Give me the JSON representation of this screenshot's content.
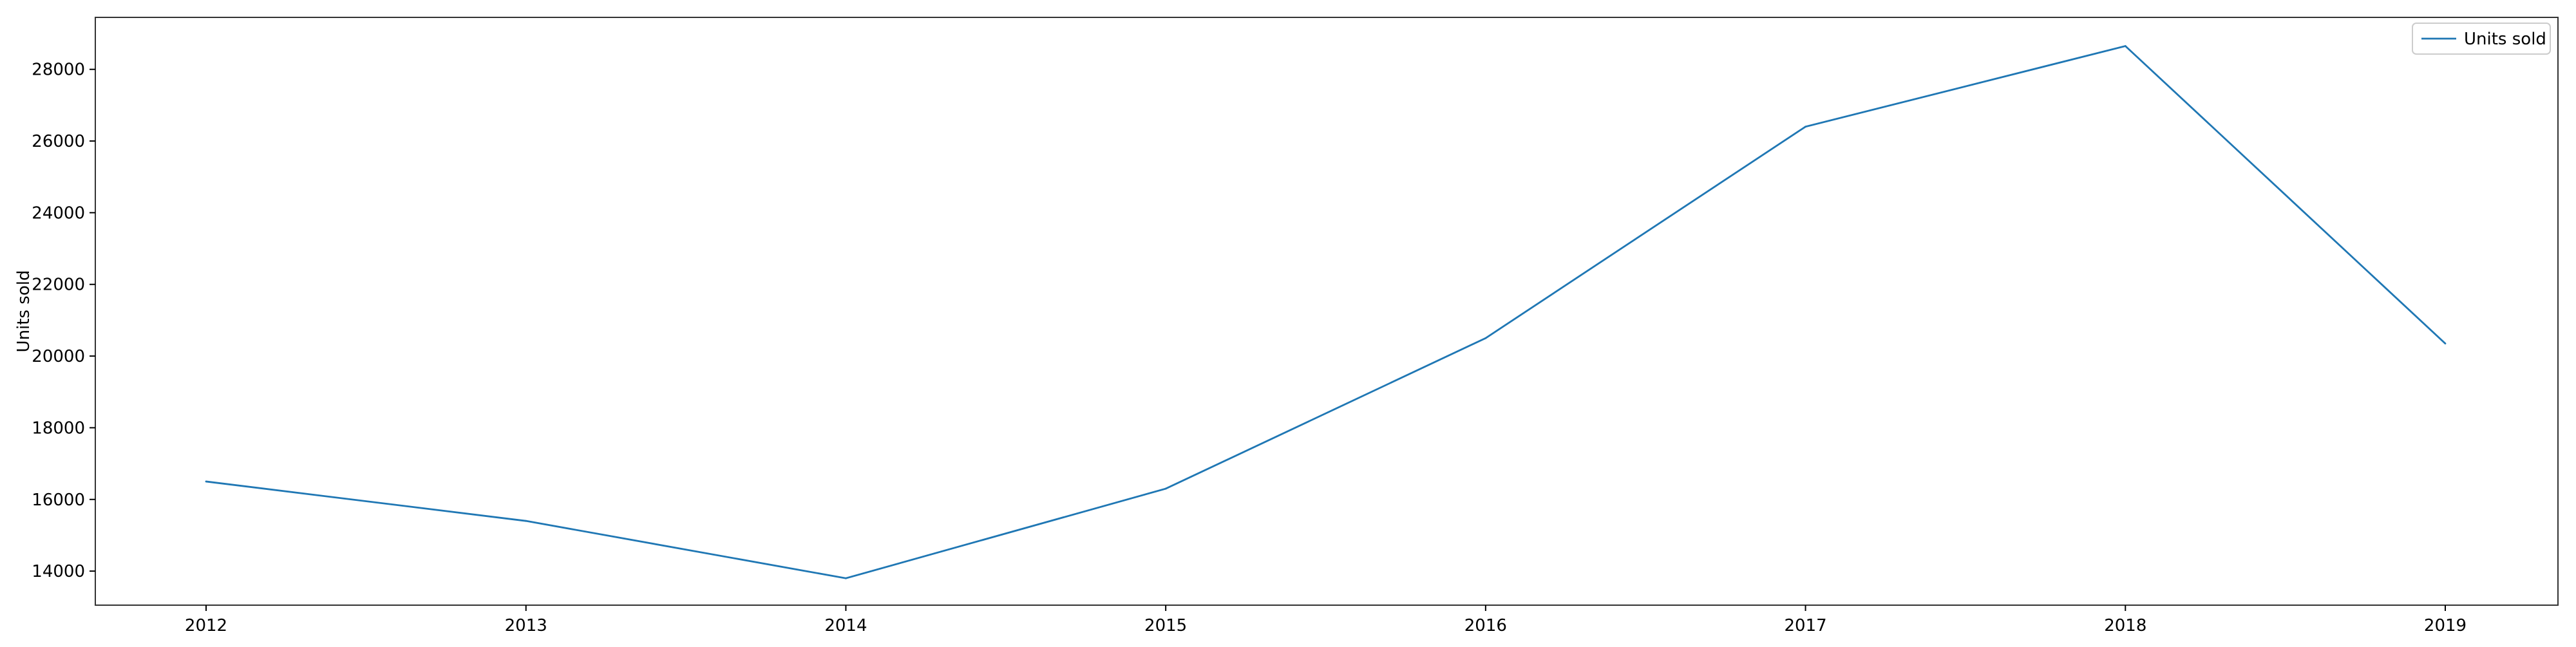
{
  "chart_data": {
    "type": "line",
    "title": "",
    "xlabel": "",
    "ylabel": "Units sold",
    "categories": [
      "2012",
      "2013",
      "2014",
      "2015",
      "2016",
      "2017",
      "2018",
      "2019"
    ],
    "series": [
      {
        "name": "Units sold",
        "color": "#1f77b4",
        "values": [
          16500,
          15400,
          13800,
          16300,
          20500,
          26400,
          28650,
          20350
        ]
      }
    ],
    "yticks": [
      14000,
      16000,
      18000,
      20000,
      22000,
      24000,
      26000,
      28000
    ],
    "ylim": [
      13050,
      29450
    ],
    "grid": false,
    "legend_position": "top-right"
  }
}
